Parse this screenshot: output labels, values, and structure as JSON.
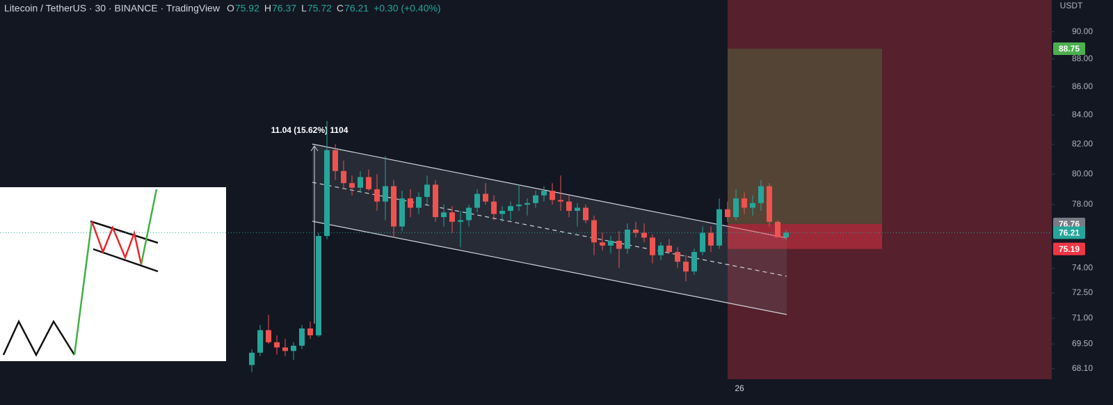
{
  "header": {
    "title": "Litecoin / TetherUS · 30 · BINANCE · TradingView",
    "ohlc": [
      {
        "label": "O",
        "value": "75.92"
      },
      {
        "label": "H",
        "value": "76.37"
      },
      {
        "label": "L",
        "value": "75.72"
      },
      {
        "label": "C",
        "value": "76.21"
      }
    ],
    "change": "+0.30 (+0.40%)"
  },
  "chart_data": {
    "type": "candlestick",
    "axis_unit": "USDT",
    "log_scale": true,
    "annotation": "11.04 (15.62%) 1104",
    "up_color": "#26a69a",
    "down_color": "#ef5350",
    "ylim": [
      67.5,
      92.4
    ],
    "yticks": [
      {
        "value": 90,
        "label": "90.00"
      },
      {
        "value": 88,
        "label": "88.00"
      },
      {
        "value": 86,
        "label": "86.00"
      },
      {
        "value": 84,
        "label": "84.00"
      },
      {
        "value": 82,
        "label": "82.00"
      },
      {
        "value": 80,
        "label": "80.00"
      },
      {
        "value": 78,
        "label": "78.00"
      },
      {
        "value": 74,
        "label": "74.00"
      },
      {
        "value": 72.5,
        "label": "72.50"
      },
      {
        "value": 71,
        "label": "71.00"
      },
      {
        "value": 69.5,
        "label": "69.50"
      },
      {
        "value": 68.1,
        "label": "68.10"
      }
    ],
    "price_markers": [
      {
        "value": 88.75,
        "color": "#4caf50"
      },
      {
        "value": 76.76,
        "color": "#787b86"
      },
      {
        "value": 76.21,
        "color": "#26a69a"
      },
      {
        "value": 75.19,
        "color": "#f23645"
      }
    ],
    "categories": [
      null,
      null,
      null,
      null,
      null,
      null,
      null,
      null,
      null,
      null,
      null,
      null,
      null,
      null,
      null,
      null,
      null,
      null,
      null,
      null,
      null,
      null,
      null,
      null,
      null,
      null,
      null,
      null,
      null,
      null,
      null,
      null,
      null,
      null,
      null,
      null,
      null,
      null,
      null,
      null,
      null,
      null,
      null,
      null,
      null,
      null,
      null,
      null,
      null,
      null,
      null,
      null,
      null,
      null,
      null,
      null,
      null,
      null,
      "26",
      null,
      null,
      null,
      null,
      null,
      null
    ],
    "open": [
      68.3,
      69.0,
      70.3,
      69.6,
      69.3,
      69.1,
      69.4,
      70.4,
      70.0,
      76.0,
      81.6,
      80.2,
      79.4,
      79.1,
      79.8,
      79.0,
      78.2,
      79.2,
      76.6,
      78.4,
      77.8,
      78.5,
      79.3,
      77.2,
      77.5,
      76.9,
      77.0,
      77.8,
      78.7,
      78.2,
      77.4,
      77.6,
      77.9,
      78.0,
      78.1,
      78.6,
      78.9,
      78.3,
      78.2,
      77.6,
      77.8,
      77.0,
      75.6,
      75.4,
      75.7,
      75.2,
      76.4,
      76.2,
      75.9,
      74.8,
      75.4,
      75.0,
      74.4,
      73.8,
      75.0,
      76.2,
      75.4,
      77.7,
      77.2,
      78.4,
      77.8,
      78.1,
      79.2,
      76.9,
      75.92
    ],
    "high": [
      69.2,
      70.6,
      71.2,
      70.0,
      69.8,
      69.6,
      70.6,
      70.8,
      76.2,
      83.6,
      82.0,
      80.9,
      79.9,
      80.2,
      80.3,
      80.0,
      81.2,
      79.6,
      78.9,
      79.0,
      78.8,
      79.9,
      79.6,
      78.0,
      77.9,
      77.6,
      78.0,
      79.0,
      79.4,
      78.6,
      77.9,
      78.2,
      79.3,
      78.4,
      78.9,
      79.2,
      79.4,
      79.9,
      78.6,
      78.1,
      78.0,
      77.3,
      76.2,
      76.0,
      76.3,
      76.8,
      76.9,
      76.8,
      76.1,
      75.6,
      75.8,
      75.3,
      74.8,
      75.2,
      76.6,
      76.6,
      78.4,
      78.2,
      79.0,
      78.8,
      78.6,
      79.6,
      79.4,
      77.0,
      76.37
    ],
    "low": [
      67.9,
      68.8,
      69.5,
      68.9,
      68.8,
      68.6,
      69.2,
      69.8,
      69.9,
      75.8,
      79.6,
      79.0,
      78.6,
      78.8,
      78.9,
      77.6,
      77.0,
      75.9,
      76.3,
      77.2,
      77.4,
      78.0,
      76.9,
      76.6,
      76.2,
      75.3,
      76.6,
      77.5,
      78.0,
      77.0,
      76.9,
      77.0,
      77.6,
      77.3,
      77.8,
      78.2,
      78.0,
      77.6,
      77.2,
      76.6,
      76.8,
      74.8,
      75.1,
      74.9,
      74.0,
      74.9,
      75.9,
      75.6,
      74.3,
      74.5,
      74.9,
      74.0,
      73.2,
      73.6,
      74.8,
      75.0,
      75.2,
      76.9,
      77.0,
      77.4,
      77.3,
      77.6,
      76.6,
      75.9,
      75.72
    ],
    "close": [
      69.0,
      70.3,
      69.6,
      69.3,
      69.1,
      69.4,
      70.4,
      70.0,
      76.0,
      81.6,
      80.2,
      79.4,
      79.1,
      79.8,
      79.0,
      78.2,
      79.2,
      76.6,
      78.4,
      77.8,
      78.5,
      79.3,
      77.2,
      77.5,
      76.9,
      77.0,
      77.8,
      78.7,
      78.2,
      77.4,
      77.6,
      77.9,
      78.0,
      78.1,
      78.6,
      78.9,
      78.3,
      78.2,
      77.6,
      77.8,
      77.0,
      75.6,
      75.4,
      75.7,
      75.2,
      76.4,
      76.2,
      75.9,
      74.8,
      75.4,
      75.0,
      74.4,
      73.8,
      75.0,
      76.2,
      75.4,
      77.7,
      77.2,
      78.4,
      77.8,
      78.1,
      79.2,
      76.9,
      75.92,
      76.21
    ]
  }
}
